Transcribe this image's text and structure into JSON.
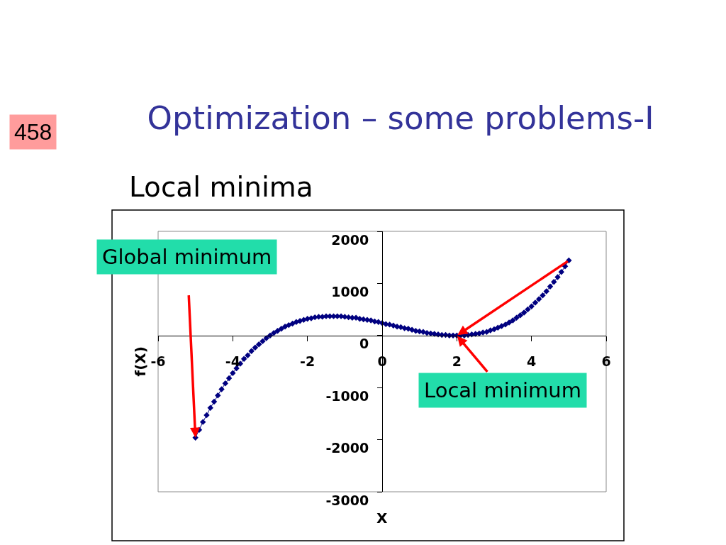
{
  "chart_data": {
    "type": "line",
    "title": "Optimization – some problems-I",
    "subtitle": "Local minima",
    "xlabel": "X",
    "ylabel": "f(X)",
    "x": [
      -5,
      -4.9,
      -4.8,
      -4.7,
      -4.6,
      -4.5,
      -4.4,
      -4.3,
      -4.2,
      -4.1,
      -4,
      -3.9,
      -3.8,
      -3.7,
      -3.6,
      -3.5,
      -3.4,
      -3.3,
      -3.2,
      -3.1,
      -3,
      -2.9,
      -2.8,
      -2.7,
      -2.6,
      -2.5,
      -2.4,
      -2.3,
      -2.2,
      -2.1,
      -2,
      -1.9,
      -1.8,
      -1.7,
      -1.6,
      -1.5,
      -1.4,
      -1.3,
      -1.2,
      -1.1,
      -1,
      -0.9,
      -0.8,
      -0.7,
      -0.6,
      -0.5,
      -0.4,
      -0.3,
      -0.2,
      -0.1,
      0,
      0.1,
      0.2,
      0.3,
      0.4,
      0.5,
      0.6,
      0.7,
      0.8,
      0.9,
      1,
      1.1,
      1.2,
      1.3,
      1.4,
      1.5,
      1.6,
      1.7,
      1.8,
      1.9,
      2,
      2.1,
      2.2,
      2.3,
      2.4,
      2.5,
      2.6,
      2.7,
      2.8,
      2.9,
      3,
      3.1,
      3.2,
      3.3,
      3.4,
      3.5,
      3.6,
      3.7,
      3.8,
      3.9,
      4,
      4.1,
      4.2,
      4.3,
      4.4,
      4.5,
      4.6,
      4.7,
      4.8,
      4.9,
      5
    ],
    "series": [
      {
        "color": "#000080",
        "values": [
          -1960,
          -1810,
          -1660,
          -1530,
          -1390,
          -1270,
          -1150,
          -1030,
          -920,
          -820,
          -720,
          -630,
          -540,
          -450,
          -380,
          -300,
          -230,
          -170,
          -110,
          -50,
          0,
          50,
          90,
          130,
          170,
          200,
          230,
          260,
          280,
          300,
          320,
          330,
          350,
          360,
          360,
          370,
          370,
          370,
          370,
          370,
          360,
          350,
          340,
          340,
          320,
          310,
          300,
          290,
          270,
          260,
          240,
          220,
          210,
          190,
          170,
          160,
          140,
          130,
          110,
          90,
          80,
          70,
          50,
          40,
          30,
          20,
          10,
          10,
          0,
          0,
          0,
          0,
          0,
          10,
          20,
          30,
          40,
          60,
          70,
          100,
          120,
          150,
          180,
          210,
          250,
          290,
          340,
          390,
          440,
          500,
          560,
          630,
          700,
          770,
          850,
          940,
          1030,
          1120,
          1220,
          1330,
          1440
        ]
      }
    ],
    "xlim": [
      -6,
      6
    ],
    "ylim": [
      -3000,
      2000
    ],
    "xticks": [
      -6,
      -4,
      -2,
      0,
      2,
      4,
      6
    ],
    "yticks": [
      -3000,
      -2000,
      -1000,
      0,
      1000,
      2000
    ],
    "marker": "diamond",
    "line_style": "solid",
    "annotations": [
      {
        "text": "Global minimum",
        "x": -5,
        "y": -1960
      },
      {
        "text": "Local minimum",
        "x": 2,
        "y": 0
      },
      "458"
    ]
  }
}
